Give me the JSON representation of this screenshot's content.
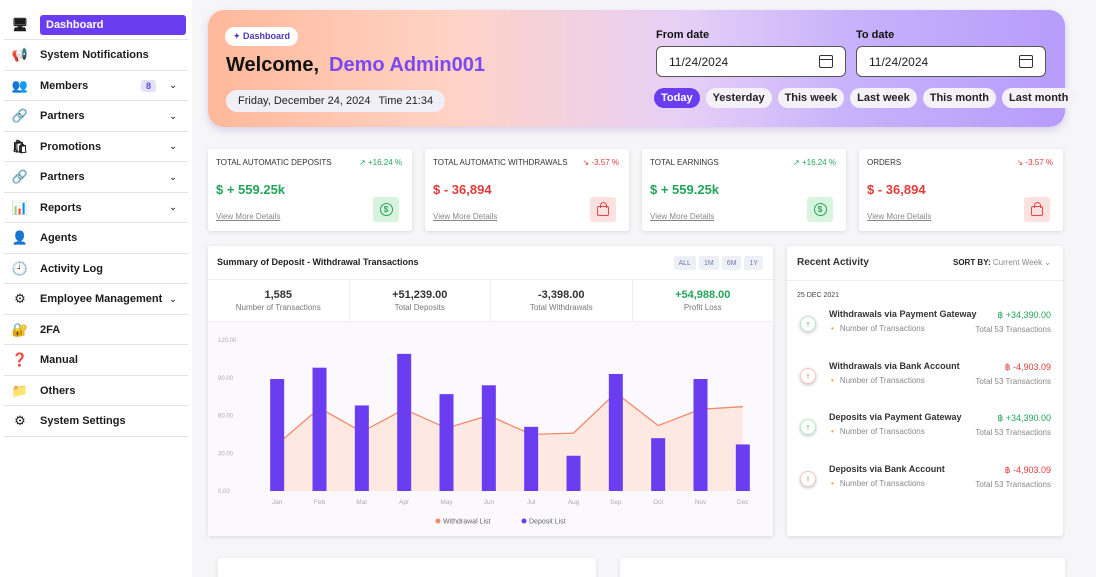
{
  "sidebar": {
    "items": [
      {
        "label": "Dashboard",
        "icon": "monitor-icon",
        "glyph": "🖥",
        "chevron": false,
        "active": true
      },
      {
        "label": "System Notifications",
        "icon": "megaphone-icon",
        "glyph": "📢",
        "chevron": false
      },
      {
        "label": "Members",
        "icon": "members-icon",
        "glyph": "👥",
        "chevron": true,
        "badge": "8"
      },
      {
        "label": "Partners",
        "icon": "partners-icon",
        "glyph": "🔗",
        "chevron": true
      },
      {
        "label": "Promotions",
        "icon": "promotion-bag-icon",
        "glyph": "🛍",
        "chevron": true
      },
      {
        "label": "Partners",
        "icon": "partners-icon",
        "glyph": "🔗",
        "chevron": true
      },
      {
        "label": "Reports",
        "icon": "reports-icon",
        "glyph": "📊",
        "chevron": true
      },
      {
        "label": "Agents",
        "icon": "agents-icon",
        "glyph": "👤",
        "chevron": false
      },
      {
        "label": "Activity Log",
        "icon": "activity-log-icon",
        "glyph": "🕘",
        "chevron": false
      },
      {
        "label": "Employee Management",
        "icon": "employee-icon",
        "glyph": "⚙",
        "chevron": true
      },
      {
        "label": "2FA",
        "icon": "two-factor-icon",
        "glyph": "🔐",
        "chevron": false
      },
      {
        "label": "Manual",
        "icon": "manual-icon",
        "glyph": "❓",
        "chevron": false
      },
      {
        "label": "Others",
        "icon": "others-icon",
        "glyph": "📁",
        "chevron": false
      },
      {
        "label": "System Settings",
        "icon": "settings-icon",
        "glyph": "⚙",
        "chevron": false
      }
    ]
  },
  "hero": {
    "pill": "✦ Dashboard",
    "welcome": "Welcome,",
    "user": "Demo Admin001",
    "date_line": "Friday, December 24, 2024",
    "time_line": "Time 21:34",
    "from_label": "From date",
    "from_value": "11/24/2024",
    "to_label": "To date",
    "to_value": "11/24/2024",
    "ranges": [
      "Today",
      "Yesterday",
      "This week",
      "Last week",
      "This month",
      "Last month"
    ],
    "active_range": 0
  },
  "stats": [
    {
      "title": "TOTAL AUTOMATIC DEPOSITS",
      "pct": "↗ +16.24 %",
      "trend": "up",
      "value": "$ + 559.25k",
      "link": "View More Details",
      "icon": "dollar-coin-icon"
    },
    {
      "title": "TOTAL AUTOMATIC WITHDRAWALS",
      "pct": "↘ -3.57 %",
      "trend": "down",
      "value": "$ - 36,894",
      "link": "View More Details",
      "icon": "shopping-bag-icon"
    },
    {
      "title": "TOTAL EARNINGS",
      "pct": "↗ +16.24 %",
      "trend": "up",
      "value": "$ + 559.25k",
      "link": "View More Details",
      "icon": "dollar-coin-icon"
    },
    {
      "title": "ORDERS",
      "pct": "↘ -3.57 %",
      "trend": "down",
      "value": "$ - 36,894",
      "link": "View More Details",
      "icon": "shopping-bag-icon"
    }
  ],
  "summary": {
    "title": "Summary of Deposit - Withdrawal Transactions",
    "periods": [
      "ALL",
      "1M",
      "6M",
      "1Y"
    ],
    "kpis": [
      {
        "value": "1,585",
        "label": "Number of Transactions"
      },
      {
        "value": "+51,239.00",
        "label": "Total Deposits"
      },
      {
        "value": "-3,398.00",
        "label": "Total Withdrawals"
      },
      {
        "value": "+54,988.00",
        "label": "Profit Loss"
      }
    ]
  },
  "chart_data": {
    "type": "bar",
    "categories": [
      "Jan",
      "Feb",
      "Mar",
      "Apr",
      "May",
      "Jun",
      "Jul",
      "Aug",
      "Sep",
      "Oct",
      "Nov",
      "Dec"
    ],
    "y_ticks": [
      "0.00",
      "30.00",
      "60.00",
      "90.00",
      "120.00"
    ],
    "ylim": [
      0,
      120
    ],
    "series": [
      {
        "name": "Deposit List",
        "type": "bar",
        "color": "#6a3ef0",
        "values": [
          89,
          98,
          68,
          109,
          77,
          84,
          51,
          28,
          93,
          42,
          89,
          37
        ]
      },
      {
        "name": "Withdrawal List",
        "type": "area",
        "color": "#f08a68",
        "values": [
          37,
          66,
          47,
          65,
          50,
          60,
          45,
          46,
          78,
          52,
          65,
          67
        ]
      }
    ],
    "legend_position": "bottom"
  },
  "activity": {
    "title": "Recent Activity",
    "sort_label": "SORT BY:",
    "sort_value": "Current Week",
    "day": "25 DEC 2021",
    "items": [
      {
        "name": "Withdrawals via Payment Gateway",
        "sub": "Number of Transactions",
        "amount": "฿ +34,390.00",
        "trend": "up",
        "total": "Total 53 Transactions"
      },
      {
        "name": "Withdrawals via Bank Account",
        "sub": "Number of Transactions",
        "amount": "฿ -4,903.09",
        "trend": "down",
        "total": "Total 53 Transactions"
      },
      {
        "name": "Deposits via Payment Gateway",
        "sub": "Number of Transactions",
        "amount": "฿ +34,390.00",
        "trend": "up",
        "total": "Total 53 Transactions"
      },
      {
        "name": "Deposits via Bank Account",
        "sub": "Number of Transactions",
        "amount": "฿ -4,903.09",
        "trend": "down",
        "total": "Total 53 Transactions"
      }
    ]
  }
}
